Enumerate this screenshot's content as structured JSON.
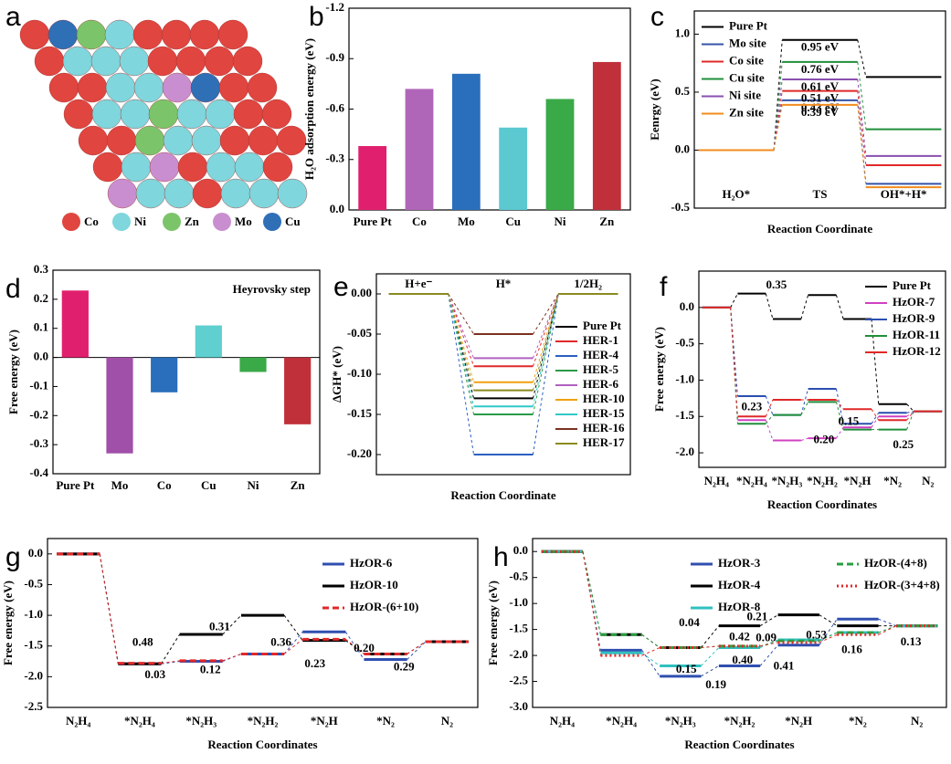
{
  "panel_a": {
    "label": "a",
    "legend": [
      {
        "name": "Co",
        "color": "#e0453f"
      },
      {
        "name": "Ni",
        "color": "#7fd6dc"
      },
      {
        "name": "Zn",
        "color": "#7cc46a"
      },
      {
        "name": "Mo",
        "color": "#c98ed0"
      },
      {
        "name": "Cu",
        "color": "#2f6fb6"
      }
    ]
  },
  "chart_data": [
    {
      "type": "bar",
      "label": "b",
      "ylabel": "H₂O adsorption energy (eV)",
      "categories": [
        "Pure Pt",
        "Co",
        "Mo",
        "Cu",
        "Ni",
        "Zn"
      ],
      "values": [
        -0.38,
        -0.72,
        -0.81,
        -0.49,
        -0.66,
        -0.88
      ],
      "colors": [
        "#e0206e",
        "#b066b8",
        "#2a6fbb",
        "#5cc8d0",
        "#3aa948",
        "#c0303a"
      ],
      "ylim": [
        0,
        -1.2
      ],
      "yticks": [
        {
          "value": 0,
          "label": "0.0"
        },
        -0.3,
        -0.6,
        -0.9,
        -1.2
      ]
    },
    {
      "type": "profile",
      "label": "c",
      "ylabel": "Eenrgy (eV)",
      "xlabel": "Reaction Coordinate",
      "states": [
        "H₂O*",
        "TS",
        "OH*+H*"
      ],
      "legend": "upper left",
      "ylim": [
        -0.5,
        1.2
      ],
      "yticks": [
        -0.5,
        {
          "value": 0,
          "label": "0.0"
        },
        0.5,
        {
          "value": 1,
          "label": "1.0"
        }
      ],
      "series": [
        {
          "name": "Pure Pt",
          "color": "#000000",
          "values": [
            0,
            0.95,
            0.63
          ],
          "value_labels": [
            null,
            "0.95 eV",
            null
          ]
        },
        {
          "name": "Mo site",
          "color": "#3553a8",
          "values": [
            0,
            0.43,
            -0.29
          ],
          "value_labels": [
            null,
            "0.43 eV",
            null
          ]
        },
        {
          "name": "Co site",
          "color": "#e02828",
          "values": [
            0,
            0.51,
            -0.13
          ],
          "value_labels": [
            null,
            "0.51 eV",
            null
          ]
        },
        {
          "name": "Cu site",
          "color": "#1f8f3a",
          "values": [
            0,
            0.76,
            0.18
          ],
          "value_labels": [
            null,
            "0.76 eV",
            null
          ]
        },
        {
          "name": "Ni site",
          "color": "#8a4fb0",
          "values": [
            0,
            0.61,
            -0.05
          ],
          "value_labels": [
            null,
            "0.61 eV",
            null
          ]
        },
        {
          "name": "Zn site",
          "color": "#f08c1e",
          "values": [
            0,
            0.39,
            -0.32
          ],
          "value_labels": [
            null,
            "0.39 eV",
            null
          ]
        }
      ]
    },
    {
      "type": "bar",
      "label": "d",
      "ylabel": "Free energy  (eV)",
      "annotation": "Heyrovsky step",
      "categories": [
        "Pure Pt",
        "Mo",
        "Co",
        "Cu",
        "Ni",
        "Zn"
      ],
      "values": [
        0.23,
        -0.33,
        -0.12,
        0.11,
        -0.05,
        -0.23
      ],
      "colors": [
        "#e0206e",
        "#a050a8",
        "#2a6fbb",
        "#60cfd0",
        "#3aa948",
        "#c0303a"
      ],
      "ylim": [
        -0.4,
        0.3
      ],
      "yticks": [
        0.3,
        0.2,
        0.1,
        {
          "value": 0,
          "label": "0.0"
        },
        -0.1,
        -0.2,
        -0.3,
        -0.4
      ]
    },
    {
      "type": "profile",
      "label": "e",
      "ylabel": "ΔGH* (eV)",
      "xlabel": "Reaction Coordinate",
      "states": [
        "H+e⁻",
        "H*",
        "1/2H₂"
      ],
      "legend": "lower right",
      "ylim": [
        -0.225,
        0.025
      ],
      "yticks": [
        {
          "value": 0,
          "label": "0.00"
        },
        -0.05,
        {
          "value": -0.1,
          "label": "-0.10"
        },
        -0.15,
        {
          "value": -0.2,
          "label": "-0.20"
        }
      ],
      "series": [
        {
          "name": "Pure Pt",
          "color": "#000000",
          "values": [
            0,
            -0.13,
            0
          ]
        },
        {
          "name": "HER-1",
          "color": "#e02828",
          "values": [
            0,
            -0.09,
            0
          ]
        },
        {
          "name": "HER-4",
          "color": "#2a5fc0",
          "values": [
            0,
            -0.2,
            0
          ]
        },
        {
          "name": "HER-5",
          "color": "#2a9a48",
          "values": [
            0,
            -0.15,
            0
          ]
        },
        {
          "name": "HER-6",
          "color": "#b060c0",
          "values": [
            0,
            -0.08,
            0
          ]
        },
        {
          "name": "HER-10",
          "color": "#f0a010",
          "values": [
            0,
            -0.11,
            0
          ]
        },
        {
          "name": "HER-15",
          "color": "#30c8c8",
          "values": [
            0,
            -0.14,
            0
          ]
        },
        {
          "name": "HER-16",
          "color": "#7a3020",
          "values": [
            0,
            -0.05,
            0
          ]
        },
        {
          "name": "HER-17",
          "color": "#8a8a20",
          "values": [
            0,
            -0.12,
            0
          ]
        }
      ]
    },
    {
      "type": "profile",
      "label": "f",
      "ylabel": "Free energy (eV)",
      "xlabel": "Reaction Coordinates",
      "states": [
        "N₂H₄",
        "*N₂H₄",
        "*N₂H₃",
        "*N₂H₂",
        "*N₂H",
        "*N₂",
        "N₂"
      ],
      "legend": "upper right",
      "ylim": [
        -2.2,
        0.5
      ],
      "yticks": [
        {
          "value": 0,
          "label": "0.0"
        },
        -0.5,
        {
          "value": -1,
          "label": "-1.0"
        },
        -1.5,
        {
          "value": -2,
          "label": "-2.0"
        }
      ],
      "series": [
        {
          "name": "Pure Pt",
          "color": "#000000",
          "values": [
            0,
            0.19,
            -0.16,
            0.17,
            -0.16,
            -1.33,
            -1.43
          ]
        },
        {
          "name": "HzOR-7",
          "color": "#d040c0",
          "values": [
            0,
            -1.55,
            -1.83,
            -1.8,
            -1.65,
            -1.5,
            -1.43
          ]
        },
        {
          "name": "HzOR-9",
          "color": "#2a4fb0",
          "values": [
            0,
            -1.22,
            -1.48,
            -1.12,
            -1.6,
            -1.45,
            -1.43
          ]
        },
        {
          "name": "HzOR-11",
          "color": "#1f8f3a",
          "values": [
            0,
            -1.6,
            -1.48,
            -1.3,
            -1.68,
            -1.68,
            -1.43
          ]
        },
        {
          "name": "HzOR-12",
          "color": "#e02828",
          "values": [
            0,
            -1.5,
            -1.27,
            -1.27,
            -1.4,
            -1.55,
            -1.43
          ]
        }
      ],
      "annotations": [
        {
          "text": "0.35",
          "color": "#000000"
        },
        {
          "text": "0.23",
          "color": "#e02828"
        },
        {
          "text": "0.20",
          "color": "#2a4fb0"
        },
        {
          "text": "0.15",
          "color": "#d040c0"
        },
        {
          "text": "0.25",
          "color": "#1f8f3a"
        }
      ]
    },
    {
      "type": "profile",
      "label": "g",
      "ylabel": "Free energy  (eV)",
      "xlabel": "Reaction Coordinates",
      "states": [
        "N₂H₄",
        "*N₂H₄",
        "*N₂H₃",
        "*N₂H₂",
        "*N₂H",
        "*N₂",
        "N₂"
      ],
      "legend": "upper right",
      "ylim": [
        -2.5,
        0.25
      ],
      "yticks": [
        {
          "value": 0,
          "label": "0.0"
        },
        -0.5,
        {
          "value": -1,
          "label": "-1.0"
        },
        -1.5,
        {
          "value": -2,
          "label": "-2.0"
        },
        -2.5
      ],
      "series": [
        {
          "name": "HzOR-6",
          "color": "#2f4fb0",
          "dash": "solid",
          "values": [
            0,
            -1.79,
            -1.75,
            -1.63,
            -1.27,
            -1.72,
            -1.43
          ]
        },
        {
          "name": "HzOR-10",
          "color": "#000000",
          "dash": "solid",
          "values": [
            0,
            -1.79,
            -1.31,
            -1.0,
            -1.41,
            -1.63,
            -1.43
          ]
        },
        {
          "name": "HzOR-(6+10)",
          "color": "#e02828",
          "dash": "dashed",
          "values": [
            0,
            -1.78,
            -1.74,
            -1.63,
            -1.39,
            -1.63,
            -1.43
          ]
        }
      ],
      "annotations": [
        {
          "text": "0.48",
          "color": "#000000"
        },
        {
          "text": "0.31",
          "color": "#000000"
        },
        {
          "text": "0.36",
          "color": "#2f4fb0"
        },
        {
          "text": "0.23",
          "color": "#e02828"
        },
        {
          "text": "0.20",
          "color": "#000000"
        },
        {
          "text": "0.03",
          "color": "#2f4fb0"
        },
        {
          "text": "0.12",
          "color": "#2f4fb0"
        },
        {
          "text": "0.29",
          "color": "#2f4fb0"
        }
      ]
    },
    {
      "type": "profile",
      "label": "h",
      "ylabel": "Free energy  (eV)",
      "xlabel": "Reaction Coordinates",
      "states": [
        "N₂H₄",
        "*N₂H₄",
        "*N₂H₃",
        "*N₂H₂",
        "*N₂H",
        "*N₂",
        "N₂"
      ],
      "legend": "upper right",
      "ylim": [
        -3.0,
        0.25
      ],
      "yticks": [
        {
          "value": 0,
          "label": "0.0"
        },
        -0.5,
        {
          "value": -1,
          "label": "-1.0"
        },
        -1.5,
        {
          "value": -2,
          "label": "-2.0"
        },
        -2.5,
        {
          "value": -3,
          "label": "-3.0"
        }
      ],
      "series": [
        {
          "name": "HzOR-3",
          "color": "#2f4fb0",
          "dash": "solid",
          "values": [
            0,
            -1.9,
            -2.4,
            -2.2,
            -1.8,
            -1.3,
            -1.43
          ]
        },
        {
          "name": "HzOR-4",
          "color": "#000000",
          "dash": "solid",
          "values": [
            0,
            -1.6,
            -1.85,
            -1.43,
            -1.22,
            -1.43,
            -1.43
          ]
        },
        {
          "name": "HzOR-8",
          "color": "#30c0c0",
          "dash": "solid",
          "values": [
            0,
            -1.95,
            -2.2,
            -1.85,
            -1.7,
            -1.56,
            -1.43
          ]
        },
        {
          "name": "HzOR-(4+8)",
          "color": "#2aa040",
          "dash": "dashed",
          "values": [
            0,
            -1.6,
            -1.85,
            -1.82,
            -1.72,
            -1.56,
            -1.43
          ]
        },
        {
          "name": "HzOR-(3+4+8)",
          "color": "#e02828",
          "dash": "dotted",
          "values": [
            0,
            -2.0,
            -1.85,
            -1.82,
            -1.75,
            -1.6,
            -1.43
          ]
        }
      ],
      "annotations": [
        {
          "text": "0.04",
          "color": "#2aa040"
        },
        {
          "text": "0.15",
          "color": "#e02828"
        },
        {
          "text": "0.42",
          "color": "#000000"
        },
        {
          "text": "0.09",
          "color": "#30c0c0"
        },
        {
          "text": "0.21",
          "color": "#000000"
        },
        {
          "text": "0.40",
          "color": "#30c0c0"
        },
        {
          "text": "0.19",
          "color": "#2f4fb0"
        },
        {
          "text": "0.41",
          "color": "#2f4fb0"
        },
        {
          "text": "0.53",
          "color": "#2f4fb0"
        },
        {
          "text": "0.16",
          "color": "#30c0c0"
        },
        {
          "text": "0.13",
          "color": "#30c0c0"
        }
      ]
    }
  ]
}
